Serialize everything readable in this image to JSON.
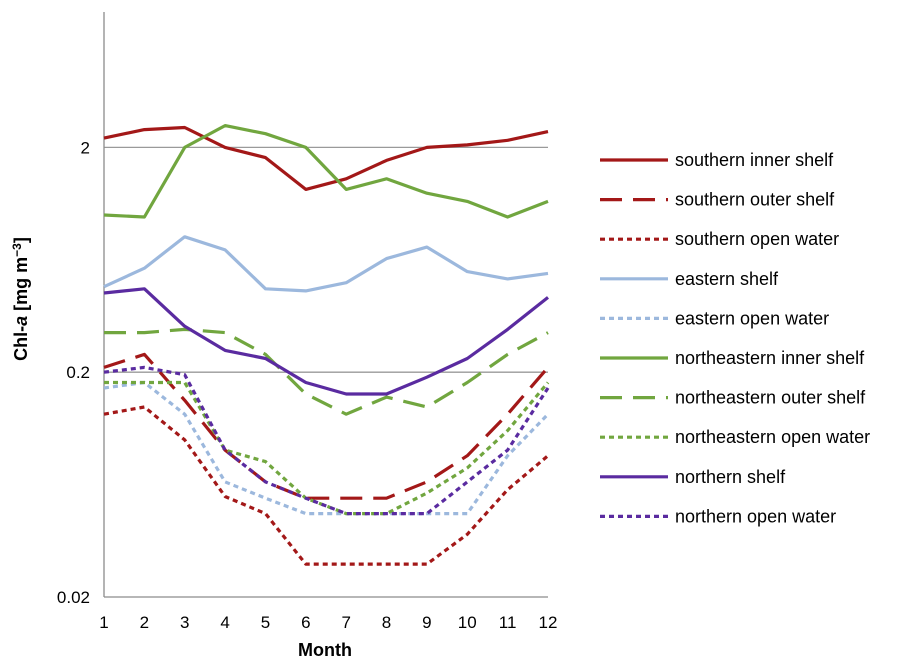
{
  "chart_data": {
    "type": "line",
    "xlabel": "Month",
    "ylabel_prefix": "Chl-",
    "ylabel_italic": "a",
    "ylabel_unit": " [mg m",
    "ylabel_exp": "−3",
    "ylabel_close": "]",
    "y_scale": "log",
    "ylim": [
      0.02,
      8
    ],
    "xlim": [
      1,
      12
    ],
    "x": [
      1,
      2,
      3,
      4,
      5,
      6,
      7,
      8,
      9,
      10,
      11,
      12
    ],
    "x_tick_labels": [
      "1",
      "2",
      "3",
      "4",
      "5",
      "6",
      "7",
      "8",
      "9",
      "10",
      "11",
      "12"
    ],
    "y_ticks": [
      0.02,
      0.2,
      2
    ],
    "y_tick_labels": [
      "0.02",
      "0.2",
      "2"
    ],
    "grid": "horizontal at 0.2 and 2",
    "legend_position": "right",
    "series": [
      {
        "name": "southern inner shelf",
        "color": "#a31818",
        "style": "solid",
        "values": [
          2.2,
          2.4,
          2.45,
          2.0,
          1.8,
          1.3,
          1.45,
          1.75,
          2.0,
          2.05,
          2.15,
          2.35
        ]
      },
      {
        "name": "southern outer shelf",
        "color": "#a31818",
        "style": "dash",
        "values": [
          0.21,
          0.24,
          0.15,
          0.09,
          0.065,
          0.055,
          0.055,
          0.055,
          0.065,
          0.085,
          0.13,
          0.21
        ]
      },
      {
        "name": "southern open water",
        "color": "#a31818",
        "style": "dot",
        "values": [
          0.13,
          0.14,
          0.1,
          0.056,
          0.047,
          0.028,
          0.028,
          0.028,
          0.028,
          0.038,
          0.06,
          0.085
        ]
      },
      {
        "name": "eastern shelf",
        "color": "#9cb8dd",
        "style": "solid",
        "values": [
          0.48,
          0.58,
          0.8,
          0.7,
          0.47,
          0.46,
          0.5,
          0.64,
          0.72,
          0.56,
          0.52,
          0.55
        ]
      },
      {
        "name": "eastern open water",
        "color": "#9cb8dd",
        "style": "dot",
        "values": [
          0.17,
          0.18,
          0.13,
          0.065,
          0.055,
          0.047,
          0.047,
          0.047,
          0.047,
          0.047,
          0.085,
          0.13
        ]
      },
      {
        "name": "northeastern inner shelf",
        "color": "#71a63f",
        "style": "solid",
        "values": [
          1.0,
          0.98,
          2.0,
          2.5,
          2.3,
          2.0,
          1.3,
          1.45,
          1.25,
          1.15,
          0.98,
          1.15
        ]
      },
      {
        "name": "northeastern outer shelf",
        "color": "#71a63f",
        "style": "dash",
        "values": [
          0.3,
          0.3,
          0.31,
          0.3,
          0.24,
          0.16,
          0.13,
          0.155,
          0.14,
          0.18,
          0.24,
          0.3
        ]
      },
      {
        "name": "northeastern open water",
        "color": "#71a63f",
        "style": "dot",
        "values": [
          0.18,
          0.18,
          0.18,
          0.09,
          0.08,
          0.055,
          0.047,
          0.047,
          0.058,
          0.075,
          0.11,
          0.18
        ]
      },
      {
        "name": "northern shelf",
        "color": "#5a2ba0",
        "style": "solid",
        "values": [
          0.45,
          0.47,
          0.32,
          0.25,
          0.23,
          0.18,
          0.16,
          0.16,
          0.19,
          0.23,
          0.31,
          0.43
        ]
      },
      {
        "name": "northern open water",
        "color": "#5a2ba0",
        "style": "dot",
        "values": [
          0.2,
          0.21,
          0.195,
          0.09,
          0.065,
          0.055,
          0.047,
          0.047,
          0.047,
          0.065,
          0.09,
          0.17
        ]
      }
    ]
  }
}
